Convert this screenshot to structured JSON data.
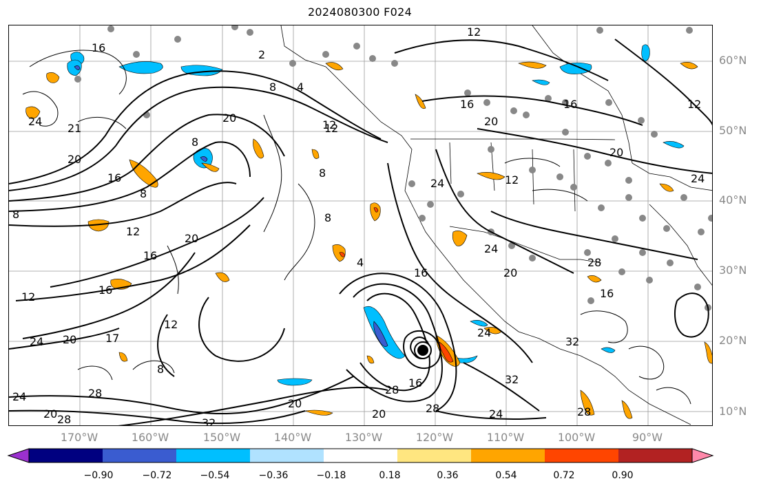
{
  "title": "2024080300 F024",
  "lat_labels": [
    "60°N",
    "50°N",
    "40°N",
    "30°N",
    "20°N",
    "10°N"
  ],
  "lon_labels": [
    "170°W",
    "160°W",
    "150°W",
    "140°W",
    "130°W",
    "120°W",
    "110°W",
    "100°W",
    "90°W"
  ],
  "contour_labels": [
    "12",
    "16",
    "16",
    "2",
    "8",
    "4",
    "20",
    "12",
    "24",
    "21",
    "20",
    "8",
    "8",
    "16",
    "8",
    "12",
    "20",
    "16",
    "12",
    "16",
    "12",
    "8",
    "12",
    "20",
    "24",
    "17",
    "8",
    "24",
    "28",
    "28",
    "20",
    "32",
    "20",
    "16",
    "28",
    "32",
    "28",
    "20",
    "24",
    "28",
    "8",
    "24",
    "4",
    "24",
    "20",
    "24",
    "32",
    "16",
    "28",
    "12",
    "16",
    "20",
    "16",
    "20",
    "24",
    "12"
  ],
  "colorbar": {
    "colors": [
      "#9b30d0",
      "#000080",
      "#3a5cd0",
      "#00bfff",
      "#b0e2ff",
      "#ffffff",
      "#ffe680",
      "#ffa500",
      "#ff4500",
      "#b22222",
      "#ff88aa"
    ],
    "ticks": [
      "−0.90",
      "−0.72",
      "−0.54",
      "−0.36",
      "−0.18",
      "0.18",
      "0.36",
      "0.54",
      "0.72",
      "0.90"
    ]
  },
  "map": {
    "fill_colors": {
      "land_dots": "#888888",
      "contour": "#000000",
      "grid": "#999999"
    },
    "cyclone_label": "hurricane-center"
  }
}
